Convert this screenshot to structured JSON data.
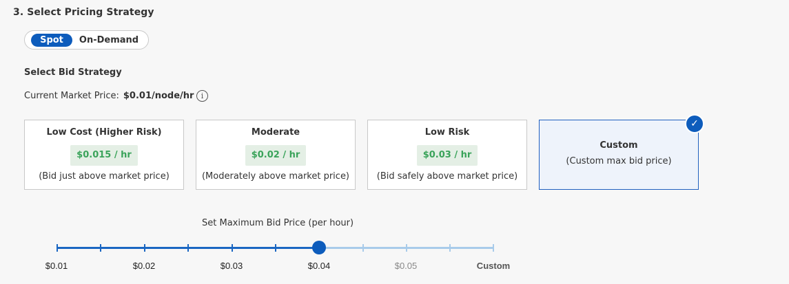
{
  "section_title": "3. Select Pricing Strategy",
  "toggle": {
    "spot": "Spot",
    "on_demand": "On-Demand",
    "selected": "Spot"
  },
  "bid_title": "Select Bid Strategy",
  "market": {
    "label": "Current Market Price:",
    "value": "$0.01/node/hr",
    "info_icon": "info-icon"
  },
  "cards": [
    {
      "name": "Low Cost (Higher Risk)",
      "price": "$0.015 / hr",
      "desc": "(Bid just above market price)"
    },
    {
      "name": "Moderate",
      "price": "$0.02 / hr",
      "desc": "(Moderately above market price)"
    },
    {
      "name": "Low Risk",
      "price": "$0.03 / hr",
      "desc": "(Bid safely above market price)"
    },
    {
      "name": "Custom",
      "desc": "(Custom max bid price)",
      "selected": true
    }
  ],
  "check_icon": "checkmark-icon",
  "slider": {
    "label": "Set Maximum Bid Price (per hour)",
    "value": "$0.04",
    "labels": [
      "$0.01",
      "$0.02",
      "$0.03",
      "$0.04",
      "$0.05",
      "Custom"
    ],
    "fill_color": "#1a66c2",
    "rest_color": "#a8cbea"
  },
  "colors": {
    "accent": "#0d5cbc",
    "price_text": "#3aa35a",
    "price_bg": "#e4efe5"
  }
}
